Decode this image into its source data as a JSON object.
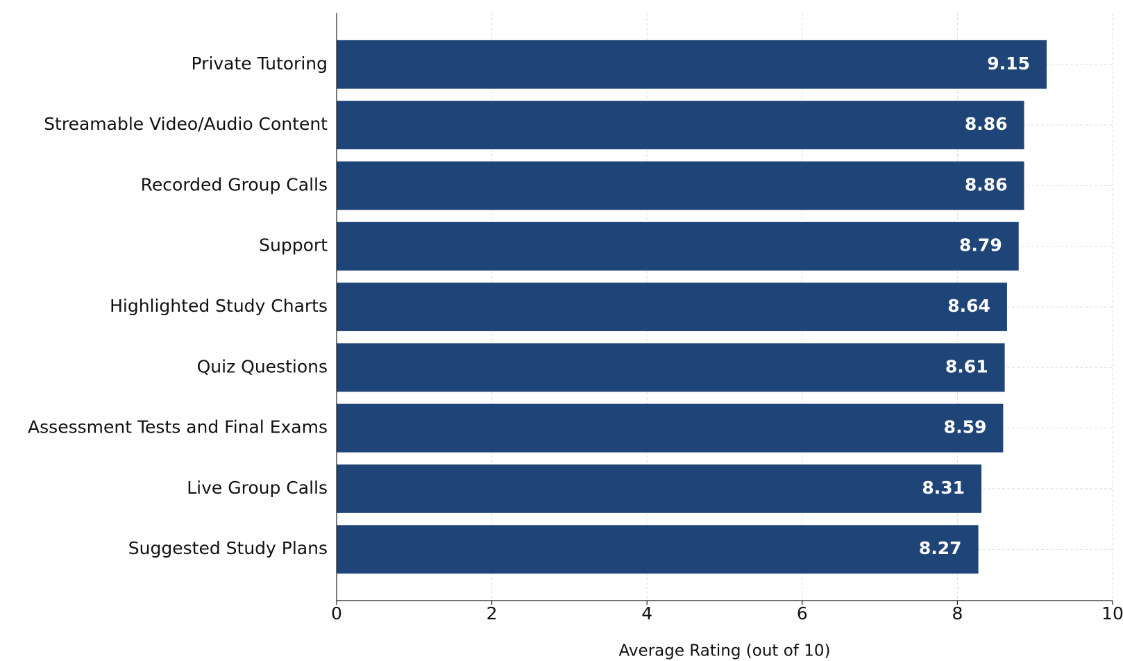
{
  "chart_data": {
    "type": "bar",
    "orientation": "horizontal",
    "x_label": "Average Rating (out of 10)",
    "categories": [
      "Private Tutoring",
      "Streamable Video/Audio Content",
      "Recorded Group Calls",
      "Support",
      "Highlighted Study Charts",
      "Quiz Questions",
      "Assessment Tests and Final Exams",
      "Live Group Calls",
      "Suggested Study Plans"
    ],
    "values": [
      9.15,
      8.86,
      8.86,
      8.79,
      8.64,
      8.61,
      8.59,
      8.31,
      8.27
    ],
    "color": "#1f4477",
    "xlim": [
      0,
      10
    ],
    "xticks": [
      0,
      2,
      4,
      6,
      8,
      10
    ],
    "grid": true
  }
}
